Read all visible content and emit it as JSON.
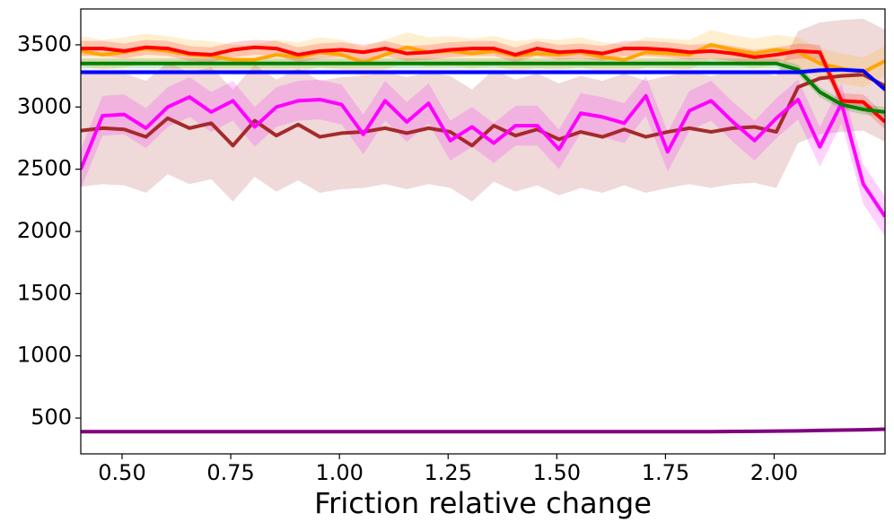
{
  "chart_data": {
    "type": "line",
    "xlabel": "Friction relative change",
    "x": [
      0.405,
      0.455,
      0.505,
      0.555,
      0.605,
      0.655,
      0.705,
      0.755,
      0.805,
      0.855,
      0.905,
      0.955,
      1.005,
      1.055,
      1.105,
      1.155,
      1.205,
      1.255,
      1.305,
      1.355,
      1.405,
      1.455,
      1.505,
      1.555,
      1.605,
      1.655,
      1.705,
      1.755,
      1.805,
      1.855,
      1.905,
      1.955,
      2.005,
      2.055,
      2.105,
      2.155,
      2.205,
      2.255
    ],
    "xlim": [
      0.405,
      2.255
    ],
    "xticks": [
      {
        "value": 0.5,
        "label": "0.50"
      },
      {
        "value": 0.75,
        "label": "0.75"
      },
      {
        "value": 1.0,
        "label": "1.00"
      },
      {
        "value": 1.25,
        "label": "1.25"
      },
      {
        "value": 1.5,
        "label": "1.50"
      },
      {
        "value": 1.75,
        "label": "1.75"
      },
      {
        "value": 2.0,
        "label": "2.00"
      }
    ],
    "ylim": [
      212,
      3788
    ],
    "yticks": [
      500,
      1000,
      1500,
      2000,
      2500,
      3000,
      3500
    ],
    "series": [
      {
        "color": "#a52a2a",
        "spread": 450,
        "values": [
          2810,
          2830,
          2820,
          2760,
          2910,
          2830,
          2870,
          2690,
          2890,
          2770,
          2860,
          2760,
          2790,
          2800,
          2830,
          2790,
          2830,
          2800,
          2690,
          2850,
          2770,
          2820,
          2740,
          2800,
          2760,
          2820,
          2760,
          2800,
          2830,
          2800,
          2830,
          2840,
          2800,
          3160,
          3230,
          3250,
          3260,
          3170
        ]
      },
      {
        "color": "#ff00ff",
        "spread": 160,
        "values": [
          2500,
          2930,
          2940,
          2830,
          3000,
          3080,
          2960,
          3050,
          2840,
          3000,
          3050,
          3060,
          3020,
          2780,
          3050,
          2880,
          3030,
          2730,
          2840,
          2710,
          2850,
          2850,
          2660,
          2950,
          2920,
          2870,
          3090,
          2640,
          2970,
          3050,
          2880,
          2730,
          2910,
          3060,
          2680,
          3030,
          2380,
          2120
        ]
      },
      {
        "color": "#ffa500",
        "spread": 120,
        "values": [
          3450,
          3420,
          3440,
          3470,
          3450,
          3420,
          3410,
          3380,
          3380,
          3420,
          3400,
          3440,
          3420,
          3360,
          3420,
          3480,
          3440,
          3450,
          3430,
          3450,
          3410,
          3430,
          3420,
          3440,
          3400,
          3380,
          3440,
          3430,
          3420,
          3500,
          3460,
          3430,
          3460,
          3440,
          3350,
          3310,
          3280,
          3370
        ]
      },
      {
        "color": "#ff0000",
        "spread": 60,
        "values": [
          3470,
          3470,
          3450,
          3480,
          3470,
          3430,
          3420,
          3460,
          3480,
          3470,
          3420,
          3450,
          3460,
          3440,
          3470,
          3430,
          3440,
          3460,
          3470,
          3470,
          3420,
          3470,
          3440,
          3450,
          3430,
          3470,
          3470,
          3460,
          3440,
          3450,
          3430,
          3400,
          3420,
          3450,
          3440,
          3050,
          3040,
          2880
        ]
      },
      {
        "color": "#008000",
        "spread": 40,
        "values": [
          3350,
          3350,
          3350,
          3350,
          3350,
          3350,
          3350,
          3350,
          3350,
          3350,
          3350,
          3350,
          3350,
          3350,
          3350,
          3350,
          3350,
          3350,
          3350,
          3350,
          3350,
          3350,
          3350,
          3350,
          3350,
          3350,
          3350,
          3350,
          3350,
          3350,
          3350,
          3350,
          3350,
          3300,
          3120,
          3020,
          2980,
          2960
        ]
      },
      {
        "color": "#0000ff",
        "spread": 20,
        "values": [
          3280,
          3280,
          3280,
          3280,
          3280,
          3280,
          3280,
          3280,
          3280,
          3280,
          3280,
          3280,
          3280,
          3280,
          3280,
          3280,
          3280,
          3280,
          3280,
          3280,
          3280,
          3280,
          3280,
          3280,
          3280,
          3280,
          3280,
          3280,
          3280,
          3280,
          3280,
          3280,
          3280,
          3280,
          3295,
          3300,
          3290,
          3140
        ]
      },
      {
        "color": "#800080",
        "spread": 10,
        "values": [
          390,
          390,
          390,
          390,
          390,
          390,
          390,
          390,
          390,
          390,
          390,
          390,
          390,
          390,
          390,
          390,
          390,
          390,
          390,
          390,
          390,
          390,
          390,
          390,
          390,
          390,
          390,
          390,
          390,
          390,
          392,
          393,
          395,
          397,
          400,
          403,
          406,
          410
        ]
      }
    ]
  }
}
